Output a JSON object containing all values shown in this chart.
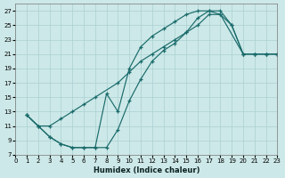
{
  "xlabel": "Humidex (Indice chaleur)",
  "background_color": "#cde8e8",
  "line_color": "#1a6b6b",
  "grid_color": "#aad0d0",
  "xlim": [
    0,
    23
  ],
  "ylim": [
    7,
    28
  ],
  "xticks": [
    0,
    1,
    2,
    3,
    4,
    5,
    6,
    7,
    8,
    9,
    10,
    11,
    12,
    13,
    14,
    15,
    16,
    17,
    18,
    19,
    20,
    21,
    22,
    23
  ],
  "yticks": [
    7,
    9,
    11,
    13,
    15,
    17,
    19,
    21,
    23,
    25,
    27
  ],
  "line1_x": [
    1,
    2,
    3,
    4,
    5,
    6,
    7,
    9,
    10,
    11,
    12,
    13,
    14,
    15,
    16,
    17,
    18,
    20,
    21,
    22,
    23
  ],
  "line1_y": [
    12.5,
    11.0,
    11.0,
    12.0,
    13.0,
    14.0,
    15.0,
    17.0,
    18.5,
    20.0,
    21.0,
    22.0,
    23.0,
    24.0,
    25.0,
    26.5,
    26.5,
    21.0,
    21.0,
    21.0,
    21.0
  ],
  "line2_x": [
    1,
    2,
    3,
    4,
    5,
    6,
    7,
    8,
    9,
    10,
    11,
    12,
    13,
    14,
    15,
    16,
    17,
    18,
    19,
    20,
    21,
    22,
    23
  ],
  "line2_y": [
    12.5,
    11.0,
    9.5,
    8.5,
    8.0,
    8.0,
    8.0,
    8.0,
    10.5,
    14.5,
    17.5,
    20.0,
    21.5,
    22.5,
    24.0,
    26.0,
    27.0,
    27.0,
    25.0,
    21.0,
    21.0,
    21.0,
    21.0
  ],
  "line3_x": [
    1,
    2,
    3,
    4,
    5,
    6,
    7,
    8,
    9,
    10,
    11,
    12,
    13,
    14,
    15,
    16,
    17,
    18,
    19,
    20,
    21,
    22,
    23
  ],
  "line3_y": [
    12.5,
    11.0,
    9.5,
    8.5,
    8.0,
    8.0,
    8.0,
    15.5,
    13.0,
    19.0,
    22.0,
    23.5,
    24.5,
    25.5,
    26.5,
    27.0,
    27.0,
    26.5,
    25.0,
    21.0,
    21.0,
    21.0,
    21.0
  ]
}
